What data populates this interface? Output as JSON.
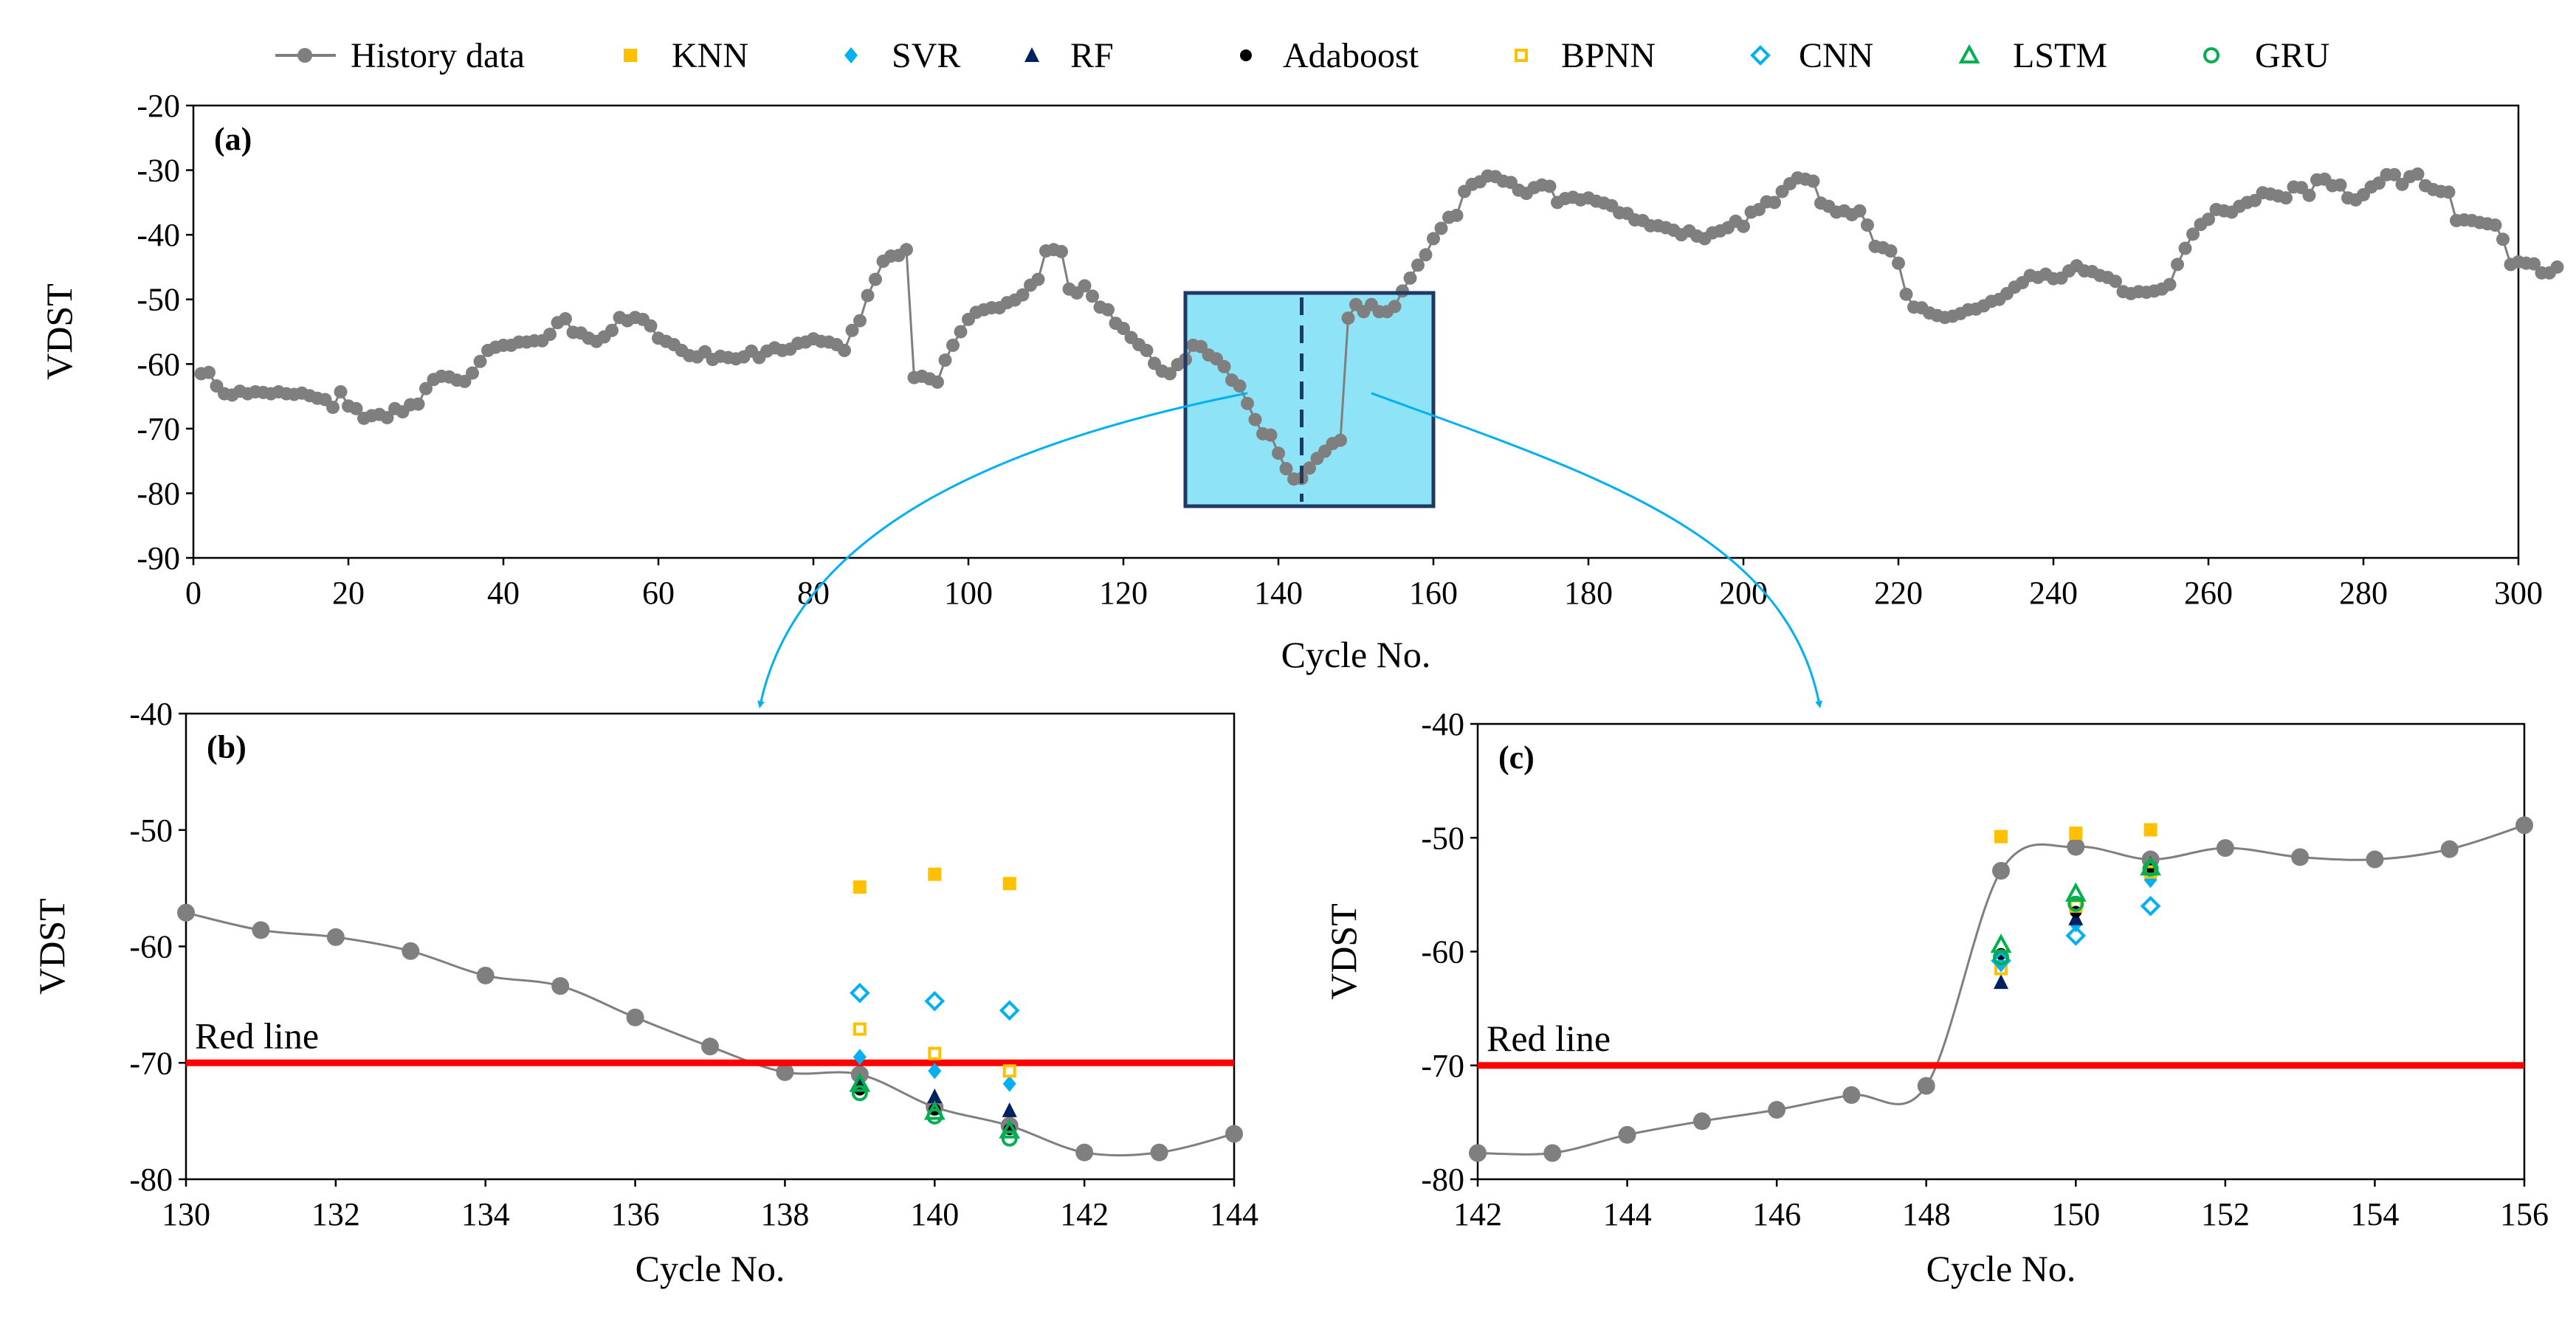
{
  "legend": {
    "items": [
      {
        "id": "history",
        "label": "History data",
        "marker": "circle-line",
        "color": "#7f7f7f"
      },
      {
        "id": "knn",
        "label": "KNN",
        "marker": "square-filled",
        "color": "#ffc000"
      },
      {
        "id": "svr",
        "label": "SVR",
        "marker": "diamond-filled",
        "color": "#00b0f0"
      },
      {
        "id": "rf",
        "label": "RF",
        "marker": "triangle-filled",
        "color": "#002060"
      },
      {
        "id": "adaboost",
        "label": "Adaboost",
        "marker": "dot-filled",
        "color": "#000000"
      },
      {
        "id": "bpnn",
        "label": "BPNN",
        "marker": "square-open",
        "color": "#ffc000"
      },
      {
        "id": "cnn",
        "label": "CNN",
        "marker": "diamond-open",
        "color": "#00b0f0"
      },
      {
        "id": "lstm",
        "label": "LSTM",
        "marker": "triangle-open",
        "color": "#00b050"
      },
      {
        "id": "gru",
        "label": "GRU",
        "marker": "circle-open",
        "color": "#00b050"
      }
    ]
  },
  "chart_data": [
    {
      "id": "a",
      "panel_label": "(a)",
      "type": "line",
      "xlabel": "Cycle  No.",
      "ylabel": "VDST",
      "xlim": [
        0,
        300
      ],
      "ylim": [
        -90,
        -20
      ],
      "xticks": [
        0,
        20,
        40,
        60,
        80,
        100,
        120,
        140,
        160,
        180,
        200,
        220,
        240,
        260,
        280,
        300
      ],
      "yticks": [
        -90,
        -80,
        -70,
        -60,
        -50,
        -40,
        -30,
        -20
      ],
      "highlight": {
        "x_range": [
          128,
          160
        ],
        "y_range": [
          -82,
          -49
        ],
        "dashed_x": 143,
        "color": "#8fe3f7"
      },
      "series": [
        {
          "name": "History data",
          "color": "#7f7f7f",
          "x_start": 1,
          "values": [
            -61.5,
            -61.3,
            -63.4,
            -64.6,
            -64.8,
            -64.2,
            -64.6,
            -64.3,
            -64.4,
            -64.6,
            -64.3,
            -64.6,
            -64.7,
            -64.5,
            -64.9,
            -65.3,
            -65.5,
            -66.7,
            -64.3,
            -66.5,
            -66.9,
            -68.4,
            -68.0,
            -67.8,
            -68.3,
            -66.9,
            -67.4,
            -66.3,
            -66.2,
            -63.8,
            -62.4,
            -61.9,
            -62.0,
            -62.5,
            -62.7,
            -61.4,
            -59.6,
            -57.9,
            -57.4,
            -57.1,
            -57.1,
            -56.6,
            -56.6,
            -56.4,
            -56.4,
            -55.4,
            -53.6,
            -53.0,
            -55.1,
            -55.2,
            -56.0,
            -56.5,
            -55.8,
            -54.8,
            -52.8,
            -53.3,
            -52.8,
            -53.1,
            -54.1,
            -56.0,
            -56.5,
            -57.0,
            -57.9,
            -58.7,
            -58.9,
            -58.1,
            -59.3,
            -58.8,
            -59.0,
            -59.2,
            -58.9,
            -58.0,
            -59.0,
            -58.0,
            -57.5,
            -57.9,
            -57.7,
            -56.8,
            -56.6,
            -56.1,
            -56.5,
            -56.6,
            -57.0,
            -57.9,
            -54.8,
            -53.3,
            -49.4,
            -46.9,
            -44.1,
            -43.3,
            -43.2,
            -42.3,
            -62.1,
            -61.9,
            -62.3,
            -62.8,
            -59.4,
            -57.1,
            -55.0,
            -53.1,
            -52.0,
            -51.6,
            -51.3,
            -51.3,
            -50.5,
            -50.1,
            -49.3,
            -47.8,
            -46.9,
            -42.5,
            -42.3,
            -42.6,
            -48.4,
            -49.0,
            -47.9,
            -49.5,
            -51.2,
            -51.6,
            -53.7,
            -54.5,
            -55.9,
            -57.0,
            -57.9,
            -59.9,
            -61.1,
            -61.5,
            -60.1,
            -59.3,
            -57.1,
            -57.3,
            -58.6,
            -59.2,
            -60.4,
            -62.5,
            -63.4,
            -66.1,
            -68.6,
            -70.8,
            -71.0,
            -73.8,
            -76.2,
            -77.8,
            -77.7,
            -76.1,
            -74.6,
            -73.5,
            -72.3,
            -71.8,
            -52.9,
            -50.8,
            -51.9,
            -50.8,
            -51.9,
            -51.9,
            -51.1,
            -48.7,
            -46.7,
            -44.7,
            -43.1,
            -40.6,
            -39.0,
            -37.3,
            -37.0,
            -33.3,
            -32.2,
            -31.8,
            -30.9,
            -31.0,
            -31.7,
            -31.9,
            -33.1,
            -33.6,
            -32.7,
            -32.3,
            -32.5,
            -35.0,
            -34.4,
            -34.2,
            -34.6,
            -34.3,
            -34.8,
            -35.1,
            -35.5,
            -36.6,
            -36.7,
            -37.7,
            -37.8,
            -38.6,
            -38.6,
            -38.9,
            -39.3,
            -40.0,
            -39.4,
            -40.2,
            -40.6,
            -39.7,
            -39.4,
            -38.9,
            -37.9,
            -38.7,
            -36.5,
            -36.1,
            -34.9,
            -35.0,
            -33.3,
            -32.1,
            -31.2,
            -31.4,
            -31.7,
            -35.1,
            -35.6,
            -36.5,
            -36.3,
            -36.9,
            -36.3,
            -38.5,
            -41.8,
            -42.0,
            -42.5,
            -44.4,
            -49.2,
            -51.2,
            -51.3,
            -52.1,
            -52.5,
            -52.8,
            -52.6,
            -52.2,
            -51.6,
            -51.5,
            -51.0,
            -50.3,
            -50.0,
            -49.1,
            -48.1,
            -47.4,
            -46.3,
            -46.6,
            -46.1,
            -46.8,
            -46.7,
            -45.6,
            -44.8,
            -45.6,
            -45.7,
            -46.3,
            -46.6,
            -47.2,
            -48.8,
            -49.1,
            -48.8,
            -48.9,
            -48.7,
            -48.4,
            -47.7,
            -44.6,
            -42.1,
            -39.9,
            -38.4,
            -37.6,
            -36.1,
            -36.3,
            -36.5,
            -35.6,
            -35.0,
            -34.7,
            -33.5,
            -33.7,
            -34.0,
            -34.3,
            -32.6,
            -32.7,
            -33.9,
            -31.5,
            -31.4,
            -32.4,
            -32.3,
            -34.3,
            -34.6,
            -33.8,
            -32.6,
            -32.0,
            -30.7,
            -30.7,
            -32.2,
            -31.0,
            -30.6,
            -32.4,
            -33.0,
            -33.3,
            -33.4,
            -37.8,
            -37.7,
            -37.8,
            -38.1,
            -38.3,
            -38.5,
            -40.7,
            -44.6,
            -44.2,
            -44.4,
            -44.5,
            -45.9,
            -45.9,
            -45.0
          ]
        }
      ]
    },
    {
      "id": "b",
      "panel_label": "(b)",
      "type": "line",
      "xlabel": "Cycle  No.",
      "ylabel": "VDST",
      "xlim": [
        130,
        144
      ],
      "ylim": [
        -80,
        -40
      ],
      "xticks": [
        130,
        132,
        134,
        136,
        138,
        140,
        142,
        144
      ],
      "yticks": [
        -80,
        -70,
        -60,
        -50,
        -40
      ],
      "red_line": {
        "y": -70,
        "label": "Red line",
        "color": "#ff0000"
      },
      "history": {
        "x": [
          130,
          131,
          132,
          133,
          134,
          135,
          136,
          137,
          138,
          139,
          140,
          141,
          142,
          143,
          144
        ],
        "values": [
          -57.1,
          -58.6,
          -59.2,
          -60.4,
          -62.5,
          -63.4,
          -66.1,
          -68.6,
          -70.8,
          -71.0,
          -73.8,
          -75.4,
          -77.7,
          -77.7,
          -76.1
        ]
      },
      "x": [
        139,
        140,
        141
      ],
      "series": [
        {
          "name": "KNN",
          "values": [
            -54.9,
            -53.8,
            -54.6
          ]
        },
        {
          "name": "SVR",
          "values": [
            -69.5,
            -70.7,
            -71.8
          ]
        },
        {
          "name": "RF",
          "values": [
            -71.6,
            -72.9,
            -74.1
          ]
        },
        {
          "name": "Adaboost",
          "values": [
            -72.3,
            -74.0,
            -75.7
          ]
        },
        {
          "name": "BPNN",
          "values": [
            -67.1,
            -69.2,
            -70.7
          ]
        },
        {
          "name": "CNN",
          "values": [
            -64.0,
            -64.7,
            -65.5
          ]
        },
        {
          "name": "LSTM",
          "values": [
            -71.8,
            -74.2,
            -75.8
          ]
        },
        {
          "name": "GRU",
          "values": [
            -72.6,
            -74.6,
            -76.5
          ]
        }
      ]
    },
    {
      "id": "c",
      "panel_label": "(c)",
      "type": "line",
      "xlabel": "Cycle  No.",
      "ylabel": "VDST",
      "xlim": [
        142,
        156
      ],
      "ylim": [
        -80,
        -40
      ],
      "xticks": [
        142,
        144,
        146,
        148,
        150,
        152,
        154,
        156
      ],
      "yticks": [
        -80,
        -70,
        -60,
        -50,
        -40
      ],
      "red_line": {
        "y": -70,
        "label": "Red line",
        "color": "#ff0000"
      },
      "history": {
        "x": [
          142,
          143,
          144,
          145,
          146,
          147,
          148,
          149,
          150,
          151,
          152,
          153,
          154,
          155,
          156
        ],
        "values": [
          -77.7,
          -77.7,
          -76.1,
          -74.9,
          -73.9,
          -72.6,
          -71.8,
          -52.9,
          -50.8,
          -51.9,
          -50.9,
          -51.7,
          -51.9,
          -51.0,
          -48.9
        ]
      },
      "x": [
        149,
        150,
        151
      ],
      "series": [
        {
          "name": "KNN",
          "values": [
            -49.9,
            -49.6,
            -49.3
          ]
        },
        {
          "name": "SVR",
          "values": [
            -61.1,
            -57.6,
            -53.7
          ]
        },
        {
          "name": "RF",
          "values": [
            -62.7,
            -57.1,
            -52.3
          ]
        },
        {
          "name": "Adaboost",
          "values": [
            -60.2,
            -56.5,
            -52.6
          ]
        },
        {
          "name": "BPNN",
          "values": [
            -61.5,
            -56.0,
            -53.0
          ]
        },
        {
          "name": "CNN",
          "values": [
            -60.8,
            -58.6,
            -56.0
          ]
        },
        {
          "name": "LSTM",
          "values": [
            -59.4,
            -54.9,
            -52.6
          ]
        },
        {
          "name": "GRU",
          "values": [
            -60.5,
            -55.8,
            -52.7
          ]
        }
      ]
    }
  ]
}
